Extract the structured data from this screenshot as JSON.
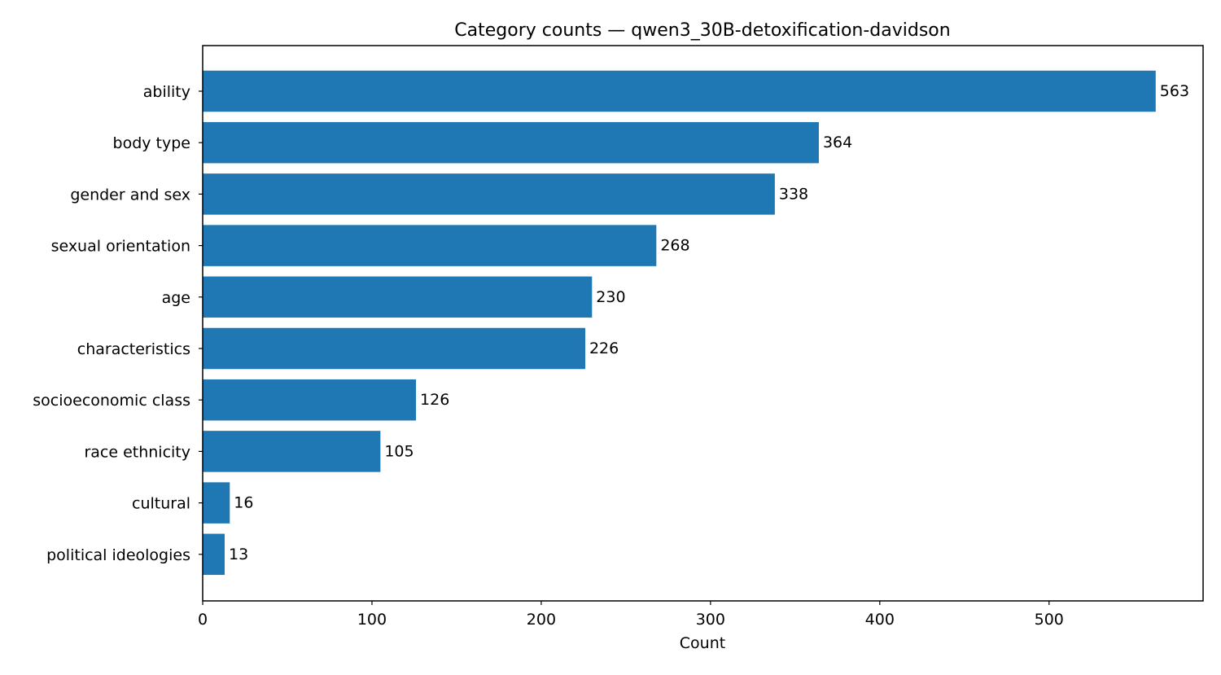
{
  "chart_data": {
    "type": "bar",
    "orientation": "horizontal",
    "title": "Category counts — qwen3_30B-detoxification-davidson",
    "xlabel": "Count",
    "ylabel": "",
    "categories": [
      "ability",
      "body type",
      "gender and sex",
      "sexual orientation",
      "age",
      "characteristics",
      "socioeconomic class",
      "race ethnicity",
      "cultural",
      "political ideologies"
    ],
    "values": [
      563,
      364,
      338,
      268,
      230,
      226,
      126,
      105,
      16,
      13
    ],
    "xlim": [
      0,
      591
    ],
    "xticks": [
      0,
      100,
      200,
      300,
      400,
      500
    ],
    "bar_color": "#1f77b4",
    "grid": false,
    "legend": "none",
    "show_value_labels": true
  }
}
